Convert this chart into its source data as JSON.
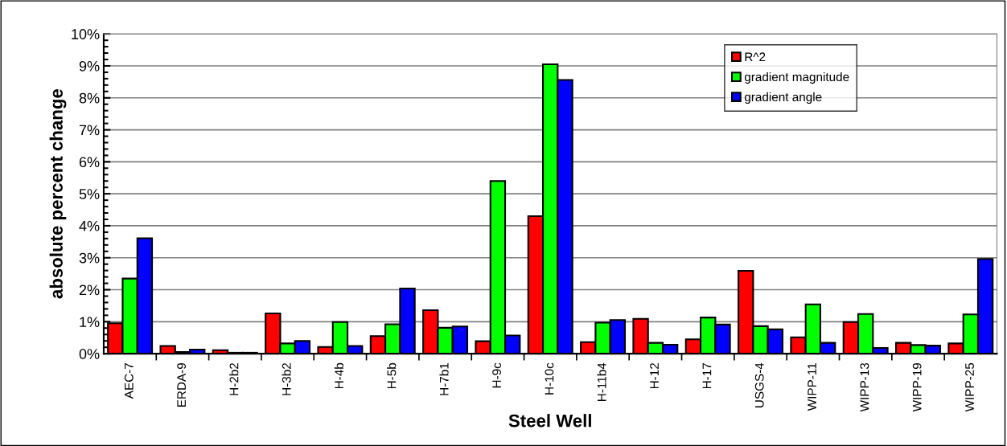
{
  "chart_data": {
    "type": "bar",
    "xlabel": "Steel Well",
    "ylabel": "absolute percent change",
    "categories": [
      "AEC-7",
      "ERDA-9",
      "H-2b2",
      "H-3b2",
      "H-4b",
      "H-5b",
      "H-7b1",
      "H-9c",
      "H-10c",
      "H-11b4",
      "H-12",
      "H-17",
      "USGS-4",
      "WIPP-11",
      "WIPP-13",
      "WIPP-19",
      "WIPP-25"
    ],
    "series": [
      {
        "name": "R^2",
        "color": "#ff0000",
        "values": [
          0.95,
          0.24,
          0.11,
          1.26,
          0.21,
          0.55,
          1.36,
          0.39,
          4.3,
          0.36,
          1.09,
          0.45,
          2.59,
          0.51,
          0.99,
          0.34,
          0.32
        ]
      },
      {
        "name": "gradient magnitude",
        "color": "#00ff00",
        "values": [
          2.35,
          0.05,
          0.03,
          0.32,
          0.99,
          0.92,
          0.81,
          5.4,
          9.05,
          0.97,
          0.34,
          1.13,
          0.86,
          1.54,
          1.24,
          0.27,
          1.23
        ]
      },
      {
        "name": "gradient angle",
        "color": "#0000ff",
        "values": [
          3.61,
          0.13,
          0.03,
          0.4,
          0.24,
          2.04,
          0.85,
          0.57,
          8.56,
          1.05,
          0.28,
          0.91,
          0.76,
          0.34,
          0.18,
          0.25,
          2.96
        ]
      }
    ],
    "ylim": [
      0,
      10
    ],
    "yticks": [
      {
        "value": 0,
        "label": "0%"
      },
      {
        "value": 1,
        "label": "1%"
      },
      {
        "value": 2,
        "label": "2%"
      },
      {
        "value": 3,
        "label": "3%"
      },
      {
        "value": 4,
        "label": "4%"
      },
      {
        "value": 5,
        "label": "5%"
      },
      {
        "value": 6,
        "label": "6%"
      },
      {
        "value": 7,
        "label": "7%"
      },
      {
        "value": 8,
        "label": "8%"
      },
      {
        "value": 9,
        "label": "9%"
      },
      {
        "value": 10,
        "label": "10%"
      }
    ],
    "grid": "y",
    "legend": "top right"
  }
}
